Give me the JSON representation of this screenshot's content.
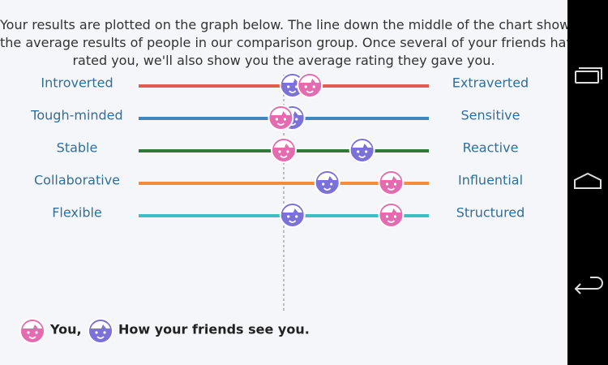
{
  "intro": [
    "Your results are plotted on the graph below. The line down the middle of the chart shows",
    "the average results of people in our comparison group. Once several of your friends have",
    "rated you, we'll also show you the average rating they gave you."
  ],
  "average": 50,
  "rows": [
    {
      "left": "Introverted",
      "right": "Extraverted",
      "color": "#e35a4f",
      "you": 59,
      "friends": 53
    },
    {
      "left": "Tough-minded",
      "right": "Sensitive",
      "color": "#3f86c0",
      "you": 49,
      "friends": 53
    },
    {
      "left": "Stable",
      "right": "Reactive",
      "color": "#2e7a3c",
      "you": 50,
      "friends": 77
    },
    {
      "left": "Collaborative",
      "right": "Influential",
      "color": "#f68c3a",
      "you": 87,
      "friends": 65
    },
    {
      "left": "Flexible",
      "right": "Structured",
      "color": "#3bbfbf",
      "you": 87,
      "friends": 53
    }
  ],
  "legend": {
    "you": "You,",
    "friends": "How your friends see you."
  },
  "colors": {
    "you": "#e46bb0",
    "friends": "#7b71d8"
  }
}
